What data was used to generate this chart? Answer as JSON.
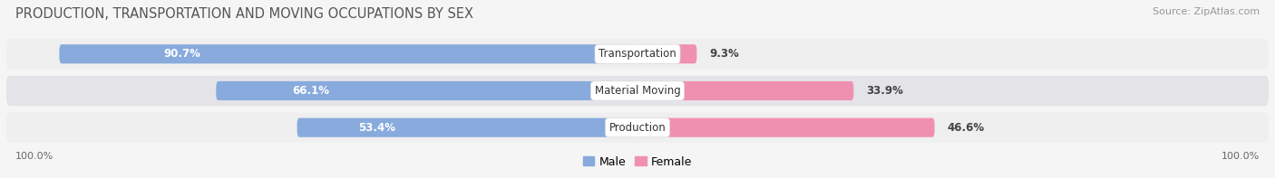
{
  "title": "PRODUCTION, TRANSPORTATION AND MOVING OCCUPATIONS BY SEX",
  "source": "Source: ZipAtlas.com",
  "categories": [
    "Transportation",
    "Material Moving",
    "Production"
  ],
  "male_values": [
    90.7,
    66.1,
    53.4
  ],
  "female_values": [
    9.3,
    33.9,
    46.6
  ],
  "male_color": "#88aadd",
  "female_color": "#f090b0",
  "row_bg_even": "#efefef",
  "row_bg_odd": "#e4e4e8",
  "axis_label_left": "100.0%",
  "axis_label_right": "100.0%",
  "title_fontsize": 10.5,
  "source_fontsize": 8,
  "bar_label_fontsize": 8.5,
  "cat_label_fontsize": 8.5,
  "bar_height": 0.52
}
